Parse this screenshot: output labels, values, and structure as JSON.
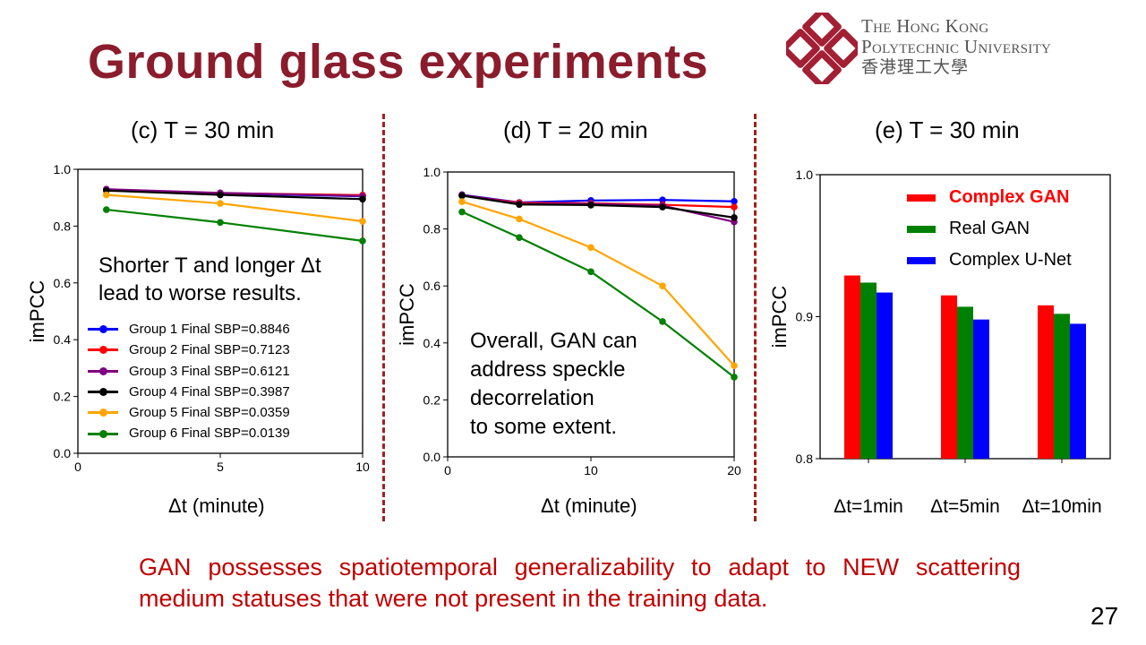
{
  "slide": {
    "title": "Ground glass experiments",
    "conclusion": "GAN possesses spatiotemporal generalizability to adapt to NEW scattering medium statuses that were not present in the training data.",
    "page_number": "27"
  },
  "logo": {
    "line1": "The Hong Kong",
    "line2": "Polytechnic University",
    "line3": "香港理工大學",
    "color": "#a31f34"
  },
  "annotations": {
    "c_line1": "Shorter T and longer Δt",
    "c_line2": "lead to worse results.",
    "d_line1": "Overall, GAN can",
    "d_line2": "address speckle",
    "d_line3": "decorrelation",
    "d_line4": "to some extent."
  },
  "chart_data": [
    {
      "type": "line",
      "title": "(c) T = 30 min",
      "xlabel": "Δt (minute)",
      "ylabel": "imPCC",
      "xlim": [
        0,
        10
      ],
      "ylim": [
        0,
        1
      ],
      "xticks": [
        "0",
        "5",
        "10"
      ],
      "yticks": [
        "0.0",
        "0.2",
        "0.4",
        "0.6",
        "0.8",
        "1.0"
      ],
      "x": [
        1,
        5,
        10
      ],
      "legend_position": "lower-left",
      "series": [
        {
          "name": "Group 1 Final SBP=0.8846",
          "color": "#0000ff",
          "values": [
            0.928,
            0.915,
            0.905
          ]
        },
        {
          "name": "Group 2 Final SBP=0.7123",
          "color": "#ff0000",
          "values": [
            0.928,
            0.916,
            0.909
          ]
        },
        {
          "name": "Group 3 Final SBP=0.6121",
          "color": "#800080",
          "values": [
            0.93,
            0.917,
            0.906
          ]
        },
        {
          "name": "Group 4 Final SBP=0.3987",
          "color": "#000000",
          "values": [
            0.925,
            0.91,
            0.895
          ]
        },
        {
          "name": "Group 5 Final SBP=0.0359",
          "color": "#ffa500",
          "values": [
            0.91,
            0.88,
            0.817
          ]
        },
        {
          "name": "Group 6 Final SBP=0.0139",
          "color": "#008000",
          "values": [
            0.858,
            0.813,
            0.748
          ]
        }
      ]
    },
    {
      "type": "line",
      "title": "(d) T = 20 min",
      "xlabel": "Δt (minute)",
      "ylabel": "imPCC",
      "xlim": [
        0,
        20
      ],
      "ylim": [
        0,
        1
      ],
      "xticks": [
        "0",
        "10",
        "20"
      ],
      "yticks": [
        "0.0",
        "0.2",
        "0.4",
        "0.6",
        "0.8",
        "1.0"
      ],
      "x": [
        1,
        5,
        10,
        15,
        20
      ],
      "series": [
        {
          "color": "#0000ff",
          "values": [
            0.92,
            0.893,
            0.9,
            0.902,
            0.897
          ]
        },
        {
          "color": "#ff0000",
          "values": [
            0.918,
            0.892,
            0.89,
            0.885,
            0.877
          ]
        },
        {
          "color": "#800080",
          "values": [
            0.92,
            0.888,
            0.888,
            0.882,
            0.825
          ]
        },
        {
          "color": "#000000",
          "values": [
            0.917,
            0.886,
            0.884,
            0.877,
            0.84
          ]
        },
        {
          "color": "#ffa500",
          "values": [
            0.896,
            0.835,
            0.735,
            0.6,
            0.32
          ]
        },
        {
          "color": "#008000",
          "values": [
            0.86,
            0.77,
            0.65,
            0.475,
            0.28
          ]
        }
      ]
    },
    {
      "type": "bar",
      "title": "(e) T = 30 min",
      "ylabel": "imPCC",
      "ylim": [
        0.8,
        1.0
      ],
      "yticks": [
        "0.8",
        "0.9",
        "1.0"
      ],
      "categories": [
        "Δt=1min",
        "Δt=5min",
        "Δt=10min"
      ],
      "legend_position": "upper-right",
      "series": [
        {
          "name": "Complex GAN",
          "color": "#ff0000",
          "values": [
            0.929,
            0.915,
            0.908
          ]
        },
        {
          "name": "Real GAN",
          "color": "#008000",
          "values": [
            0.924,
            0.907,
            0.902
          ]
        },
        {
          "name": "Complex U-Net",
          "color": "#0000ff",
          "values": [
            0.917,
            0.898,
            0.895
          ]
        }
      ]
    }
  ]
}
